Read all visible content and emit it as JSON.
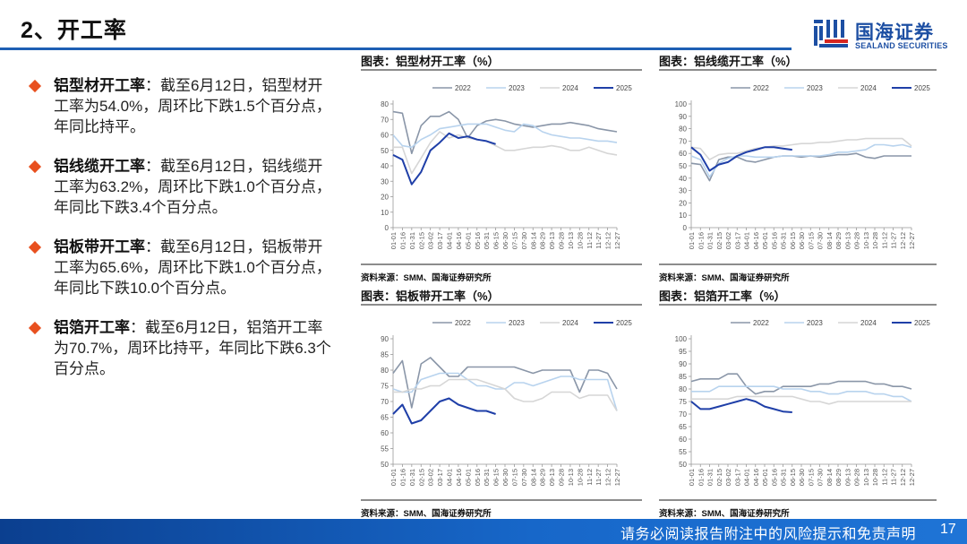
{
  "header": {
    "title": "2、开工率",
    "logo": {
      "cn": "国海证券",
      "en": "SEALAND SECURITIES",
      "icon": "sealand-logo-icon"
    }
  },
  "colors": {
    "accent_blue": "#1e5fb4",
    "bullet": "#e8501f",
    "series_2022": "#8a96a8",
    "series_2023": "#b8d3ee",
    "series_2024": "#d6d6d6",
    "series_2025": "#1f3fa8"
  },
  "bullets": [
    {
      "head": "铝型材开工率",
      "body": "：截至6月12日，铝型材开工率为54.0%，周环比下跌1.5个百分点，年同比持平。"
    },
    {
      "head": "铝线缆开工率",
      "body": "：截至6月12日，铝线缆开工率为63.2%，周环比下跌1.0个百分点，年同比下跌3.4个百分点。"
    },
    {
      "head": "铝板带开工率",
      "body": "：截至6月12日，铝板带开工率为65.6%，周环比下跌1.0个百分点，年同比下跌10.0个百分点。"
    },
    {
      "head": "铝箔开工率",
      "body": "：截至6月12日，铝箔开工率为70.7%，周环比持平，年同比下跌6.3个百分点。"
    }
  ],
  "footer": {
    "disclaimer": "请务必阅读报告附注中的风险提示和免责声明",
    "page": "17"
  },
  "chart_data": [
    {
      "type": "line",
      "title": "图表：铝型材开工率（%）",
      "source": "资料来源：SMM、国海证券研究所",
      "ylim": [
        0,
        80
      ],
      "yticks": [
        0,
        10,
        20,
        30,
        40,
        50,
        60,
        70,
        80
      ],
      "categories": [
        "01-01",
        "01-16",
        "01-31",
        "02-15",
        "03-02",
        "03-17",
        "04-01",
        "04-16",
        "05-01",
        "05-16",
        "05-31",
        "06-15",
        "06-30",
        "07-15",
        "07-30",
        "08-14",
        "08-29",
        "09-13",
        "09-28",
        "10-13",
        "10-28",
        "11-12",
        "11-27",
        "12-12",
        "12-27"
      ],
      "legend": [
        "2022",
        "2023",
        "2024",
        "2025"
      ],
      "legend_position": "top",
      "grid": false,
      "series": [
        {
          "name": "2022",
          "values": [
            75,
            74,
            48,
            66,
            72,
            72,
            75,
            70,
            58,
            66,
            69,
            70,
            69,
            67,
            66,
            65,
            66,
            67,
            67,
            68,
            67,
            66,
            64,
            63,
            62
          ]
        },
        {
          "name": "2023",
          "values": [
            60,
            53,
            52,
            57,
            60,
            64,
            65,
            66,
            67,
            67,
            67,
            65,
            63,
            62,
            67,
            66,
            62,
            60,
            59,
            58,
            58,
            57,
            56,
            56,
            55
          ]
        },
        {
          "name": "2024",
          "values": [
            52,
            52,
            35,
            45,
            55,
            62,
            58,
            60,
            58,
            57,
            56,
            53,
            50,
            50,
            51,
            52,
            52,
            53,
            52,
            50,
            50,
            52,
            50,
            48,
            47
          ]
        },
        {
          "name": "2025",
          "values": [
            47,
            44,
            28,
            36,
            50,
            55,
            61,
            58,
            59,
            57,
            56,
            54
          ]
        }
      ]
    },
    {
      "type": "line",
      "title": "图表：铝线缆开工率（%）",
      "source": "资料来源：SMM、国海证券研究所",
      "ylim": [
        0,
        100
      ],
      "yticks": [
        0,
        10,
        20,
        30,
        40,
        50,
        60,
        70,
        80,
        90,
        100
      ],
      "categories": [
        "01-01",
        "01-16",
        "01-31",
        "02-15",
        "03-02",
        "03-17",
        "04-01",
        "04-16",
        "05-01",
        "05-16",
        "05-31",
        "06-15",
        "06-30",
        "07-15",
        "07-30",
        "08-14",
        "08-29",
        "09-13",
        "09-28",
        "10-13",
        "10-28",
        "11-12",
        "11-27",
        "12-12",
        "12-27"
      ],
      "legend": [
        "2022",
        "2023",
        "2024",
        "2025"
      ],
      "legend_position": "top",
      "grid": false,
      "series": [
        {
          "name": "2022",
          "values": [
            52,
            51,
            38,
            55,
            57,
            57,
            54,
            53,
            55,
            57,
            58,
            58,
            57,
            58,
            57,
            58,
            59,
            59,
            60,
            57,
            56,
            58,
            58,
            58,
            58
          ]
        },
        {
          "name": "2023",
          "values": [
            58,
            55,
            41,
            52,
            56,
            58,
            58,
            57,
            57,
            57,
            58,
            58,
            58,
            58,
            58,
            59,
            61,
            61,
            62,
            63,
            67,
            67,
            66,
            67,
            65
          ]
        },
        {
          "name": "2024",
          "values": [
            65,
            64,
            55,
            59,
            60,
            60,
            62,
            64,
            65,
            66,
            66,
            67,
            68,
            68,
            69,
            69,
            70,
            71,
            71,
            72,
            72,
            72,
            72,
            72,
            66
          ]
        },
        {
          "name": "2025",
          "values": [
            65,
            59,
            46,
            51,
            53,
            58,
            61,
            63,
            65,
            65,
            64,
            63
          ]
        }
      ]
    },
    {
      "type": "line",
      "title": "图表：铝板带开工率（%）",
      "source": "资料来源：SMM、国海证券研究所",
      "ylim": [
        50,
        90
      ],
      "yticks": [
        50,
        55,
        60,
        65,
        70,
        75,
        80,
        85,
        90
      ],
      "categories": [
        "01-01",
        "01-16",
        "01-31",
        "02-15",
        "03-02",
        "03-17",
        "04-01",
        "04-16",
        "05-01",
        "05-16",
        "05-31",
        "06-15",
        "06-30",
        "07-15",
        "07-30",
        "08-14",
        "08-29",
        "09-13",
        "09-28",
        "10-13",
        "10-28",
        "11-12",
        "11-27",
        "12-12",
        "12-27"
      ],
      "legend": [
        "2022",
        "2023",
        "2024",
        "2025"
      ],
      "legend_position": "top",
      "grid": false,
      "series": [
        {
          "name": "2022",
          "values": [
            79,
            83,
            68,
            82,
            84,
            81,
            78,
            78,
            81,
            81,
            81,
            81,
            81,
            81,
            80,
            79,
            80,
            80,
            80,
            80,
            73,
            80,
            80,
            79,
            74
          ]
        },
        {
          "name": "2023",
          "values": [
            74,
            73,
            73,
            77,
            78,
            79,
            79,
            79,
            77,
            75,
            75,
            74,
            74,
            76,
            76,
            75,
            76,
            77,
            78,
            78,
            77,
            77,
            77,
            77,
            67
          ]
        },
        {
          "name": "2024",
          "values": [
            73,
            73,
            74,
            74,
            75,
            75,
            77,
            77,
            77,
            77,
            76,
            75,
            74,
            71,
            70,
            70,
            71,
            73,
            73,
            73,
            71,
            72,
            72,
            72,
            67
          ]
        },
        {
          "name": "2025",
          "values": [
            66,
            69,
            63,
            64,
            67,
            70,
            71,
            69,
            68,
            67,
            67,
            66
          ]
        }
      ]
    },
    {
      "type": "line",
      "title": "图表：铝箔开工率（%）",
      "source": "资料来源：SMM、国海证券研究所",
      "ylim": [
        50,
        100
      ],
      "yticks": [
        50,
        55,
        60,
        65,
        70,
        75,
        80,
        85,
        90,
        95,
        100
      ],
      "categories": [
        "01-01",
        "01-16",
        "01-31",
        "02-15",
        "03-02",
        "03-17",
        "04-01",
        "04-16",
        "05-01",
        "05-16",
        "05-31",
        "06-15",
        "06-30",
        "07-15",
        "07-30",
        "08-14",
        "08-29",
        "09-13",
        "09-28",
        "10-13",
        "10-28",
        "11-12",
        "11-27",
        "12-12",
        "12-27"
      ],
      "legend": [
        "2022",
        "2023",
        "2024",
        "2025"
      ],
      "legend_position": "top",
      "grid": false,
      "series": [
        {
          "name": "2022",
          "values": [
            83,
            84,
            84,
            84,
            86,
            86,
            81,
            78,
            79,
            79,
            81,
            81,
            81,
            81,
            82,
            82,
            83,
            83,
            83,
            83,
            82,
            82,
            81,
            81,
            80
          ]
        },
        {
          "name": "2023",
          "values": [
            79,
            79,
            79,
            81,
            81,
            81,
            81,
            81,
            81,
            81,
            80,
            80,
            80,
            79,
            79,
            78,
            78,
            79,
            79,
            79,
            78,
            78,
            77,
            77,
            75
          ]
        },
        {
          "name": "2024",
          "values": [
            76,
            76,
            76,
            76,
            76,
            77,
            77,
            77,
            77,
            77,
            77,
            77,
            76,
            75,
            75,
            74,
            75,
            75,
            75,
            75,
            75,
            75,
            75,
            75,
            75
          ]
        },
        {
          "name": "2025",
          "values": [
            75,
            72,
            72,
            73,
            74,
            75,
            76,
            75,
            73,
            72,
            71,
            70.7
          ]
        }
      ]
    }
  ]
}
